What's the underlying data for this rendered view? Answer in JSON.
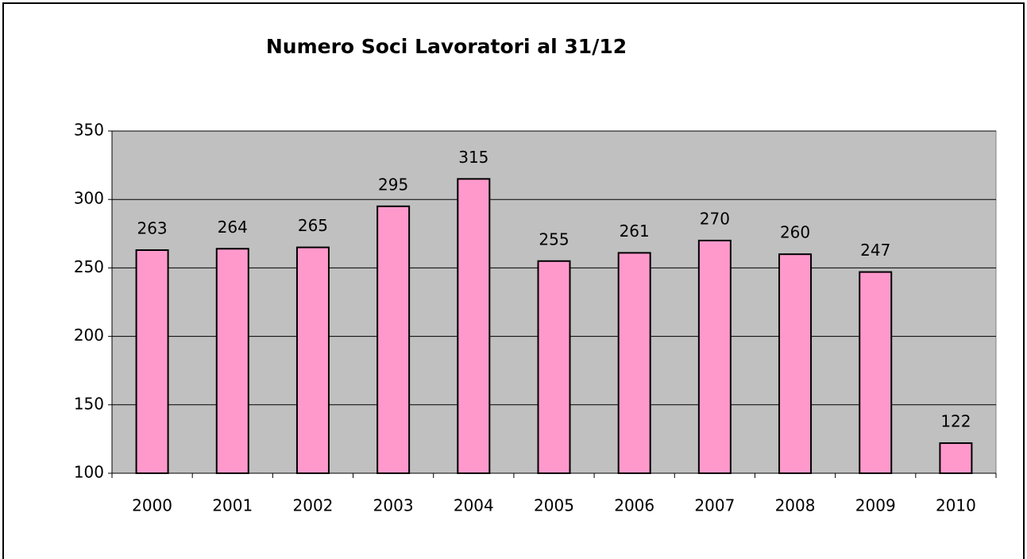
{
  "chart_data": {
    "type": "bar",
    "title": "Numero Soci Lavoratori al 31/12",
    "categories": [
      "2000",
      "2001",
      "2002",
      "2003",
      "2004",
      "2005",
      "2006",
      "2007",
      "2008",
      "2009",
      "2010"
    ],
    "values": [
      263,
      264,
      265,
      295,
      315,
      255,
      261,
      270,
      260,
      247,
      122
    ],
    "color": "#ff99cc",
    "ylim": [
      100,
      350
    ],
    "yticks": [
      100,
      150,
      200,
      250,
      300,
      350
    ],
    "grid": true
  }
}
